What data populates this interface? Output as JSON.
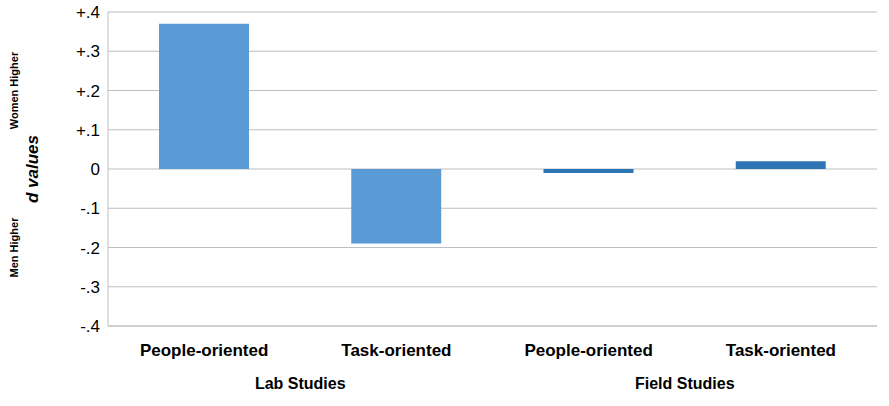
{
  "chart_data": {
    "type": "bar",
    "y_label": "d values",
    "annotations": [
      "Women Higher",
      "Men Higher"
    ],
    "categories": [
      "People-oriented",
      "Task-oriented",
      "People-oriented",
      "Task-oriented"
    ],
    "groups": [
      "Lab Studies",
      "Field Studies"
    ],
    "values": [
      0.37,
      -0.19,
      -0.01,
      0.02
    ],
    "colors": [
      "#5b9bd5",
      "#5b9bd5",
      "#2e75b6",
      "#2e75b6"
    ],
    "ylim": [
      -0.4,
      0.4
    ],
    "yticks": [
      {
        "value": -0.4,
        "label": "-.4"
      },
      {
        "value": -0.3,
        "label": "-.3"
      },
      {
        "value": -0.2,
        "label": "-.2"
      },
      {
        "value": -0.1,
        "label": "-.1"
      },
      0,
      {
        "value": 0.1,
        "label": "+.1"
      },
      {
        "value": 0.2,
        "label": "+.2"
      },
      {
        "value": 0.3,
        "label": "+.3"
      },
      {
        "value": 0.4,
        "label": "+.4"
      }
    ],
    "grid": true
  }
}
